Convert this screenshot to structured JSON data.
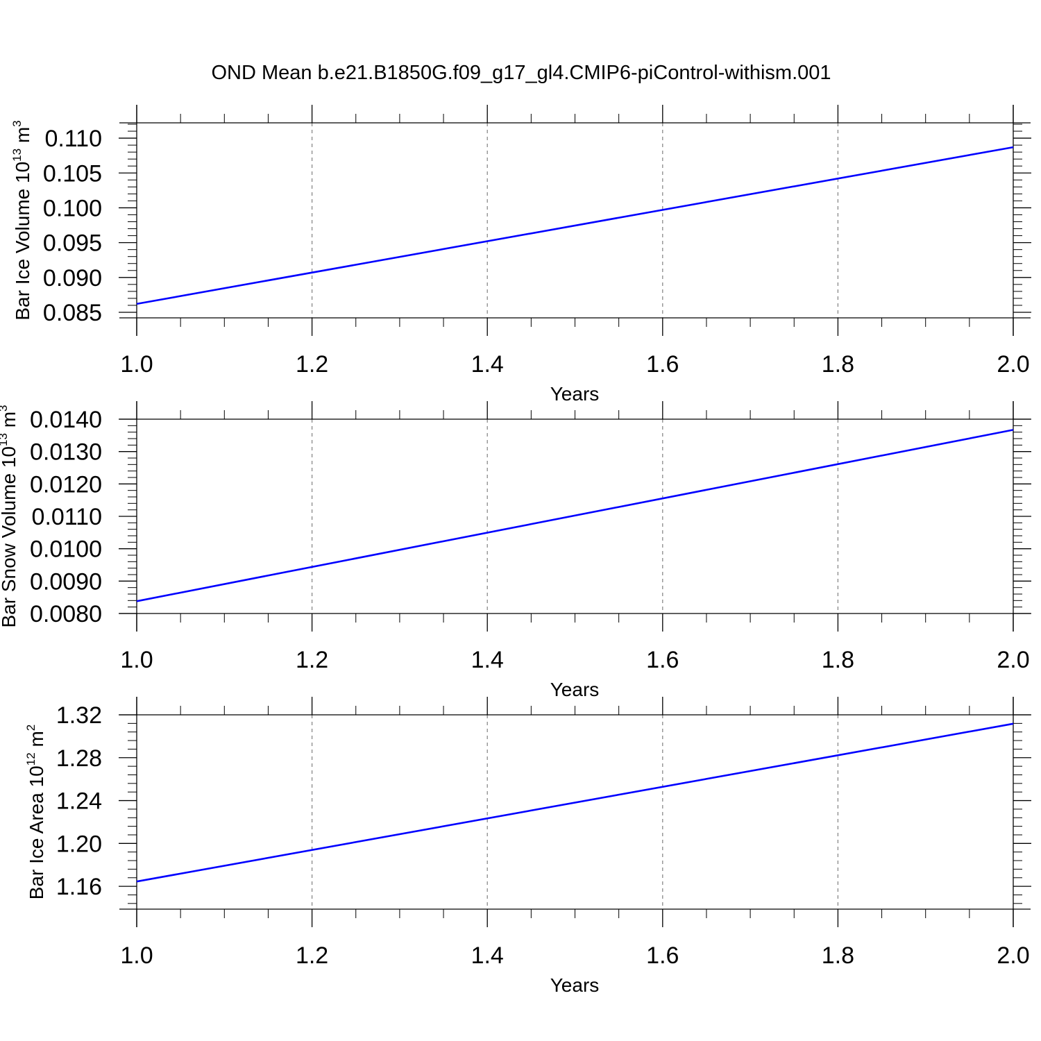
{
  "title": "OND Mean b.e21.B1850G.f09_g17_gl4.CMIP6-piControl-withism.001",
  "colors": {
    "line": "#0000ff",
    "axis": "#000000",
    "grid": "#808080"
  },
  "chart_data": [
    {
      "type": "line",
      "xlabel": "Years",
      "ylabel": {
        "text": "Bar Ice Volume 10",
        "sup1": "13",
        "mid": " m",
        "sup2": "3"
      },
      "xlim": [
        1.0,
        2.0
      ],
      "ylim": [
        0.0842,
        0.1122
      ],
      "xticks": [
        1.0,
        1.2,
        1.4,
        1.6,
        1.8,
        2.0
      ],
      "xtick_labels": [
        "1.0",
        "1.2",
        "1.4",
        "1.6",
        "1.8",
        "2.0"
      ],
      "yticks": [
        0.085,
        0.09,
        0.095,
        0.1,
        0.105,
        0.11
      ],
      "ytick_labels": [
        "0.085",
        "0.090",
        "0.095",
        "0.100",
        "0.105",
        "0.110"
      ],
      "grid": "vertical-dashed",
      "series": [
        {
          "x": [
            1.0,
            2.0
          ],
          "y": [
            0.0862,
            0.1087
          ]
        }
      ]
    },
    {
      "type": "line",
      "xlabel": "Years",
      "ylabel": {
        "text": "Bar Snow Volume 10",
        "sup1": "13",
        "mid": " m",
        "sup2": "3"
      },
      "xlim": [
        1.0,
        2.0
      ],
      "ylim": [
        0.008,
        0.014
      ],
      "xticks": [
        1.0,
        1.2,
        1.4,
        1.6,
        1.8,
        2.0
      ],
      "xtick_labels": [
        "1.0",
        "1.2",
        "1.4",
        "1.6",
        "1.8",
        "2.0"
      ],
      "yticks": [
        0.008,
        0.009,
        0.01,
        0.011,
        0.012,
        0.013,
        0.014
      ],
      "ytick_labels": [
        "0.0080",
        "0.0090",
        "0.0100",
        "0.0110",
        "0.0120",
        "0.0130",
        "0.0140"
      ],
      "grid": "vertical-dashed",
      "series": [
        {
          "x": [
            1.0,
            2.0
          ],
          "y": [
            0.00838,
            0.01367
          ]
        }
      ]
    },
    {
      "type": "line",
      "xlabel": "Years",
      "ylabel": {
        "text": "Bar Ice Area 10",
        "sup1": "12",
        "mid": " m",
        "sup2": "2"
      },
      "xlim": [
        1.0,
        2.0
      ],
      "ylim": [
        1.1387,
        1.32
      ],
      "xticks": [
        1.0,
        1.2,
        1.4,
        1.6,
        1.8,
        2.0
      ],
      "xtick_labels": [
        "1.0",
        "1.2",
        "1.4",
        "1.6",
        "1.8",
        "2.0"
      ],
      "yticks": [
        1.16,
        1.2,
        1.24,
        1.28,
        1.32
      ],
      "ytick_labels": [
        "1.16",
        "1.20",
        "1.24",
        "1.28",
        "1.32"
      ],
      "grid": "vertical-dashed",
      "series": [
        {
          "x": [
            1.0,
            2.0
          ],
          "y": [
            1.1645,
            1.3117
          ]
        }
      ]
    }
  ]
}
